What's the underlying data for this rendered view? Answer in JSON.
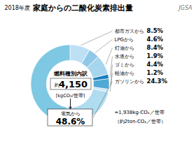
{
  "chart_data": {
    "type": "donut",
    "title": "家庭からの二酸化炭素排出量",
    "subtitle": "燃料種別内訳",
    "categories": [
      "都市ガスから",
      "LPGから",
      "灯油から",
      "水道から",
      "ゴミから",
      "軽油から",
      "ガソリンから",
      "電気から"
    ],
    "values": [
      8.5,
      4.6,
      8.4,
      1.9,
      4.4,
      1.2,
      24.3,
      48.6
    ],
    "value_labels": [
      "8.5%",
      "4.6%",
      "8.4%",
      "1.9%",
      "4.4%",
      "1.2%",
      "24.3%",
      "48.6%"
    ],
    "colors": [
      "#BDE0F5",
      "#90C8E8",
      "#A8D5EE",
      "#1A7FC0",
      "#4FA8D5",
      "#C8E6F5",
      "#B0DCF0",
      "#7EC8E3"
    ],
    "data_labels": true,
    "annotations": [
      "2018年度",
      "約",
      "4,150",
      "[kgCO₂/世帯]",
      "=1,938kg-CO₂／世帯",
      "（約2ton-CO₂／世帯）",
      "JGSA"
    ]
  }
}
